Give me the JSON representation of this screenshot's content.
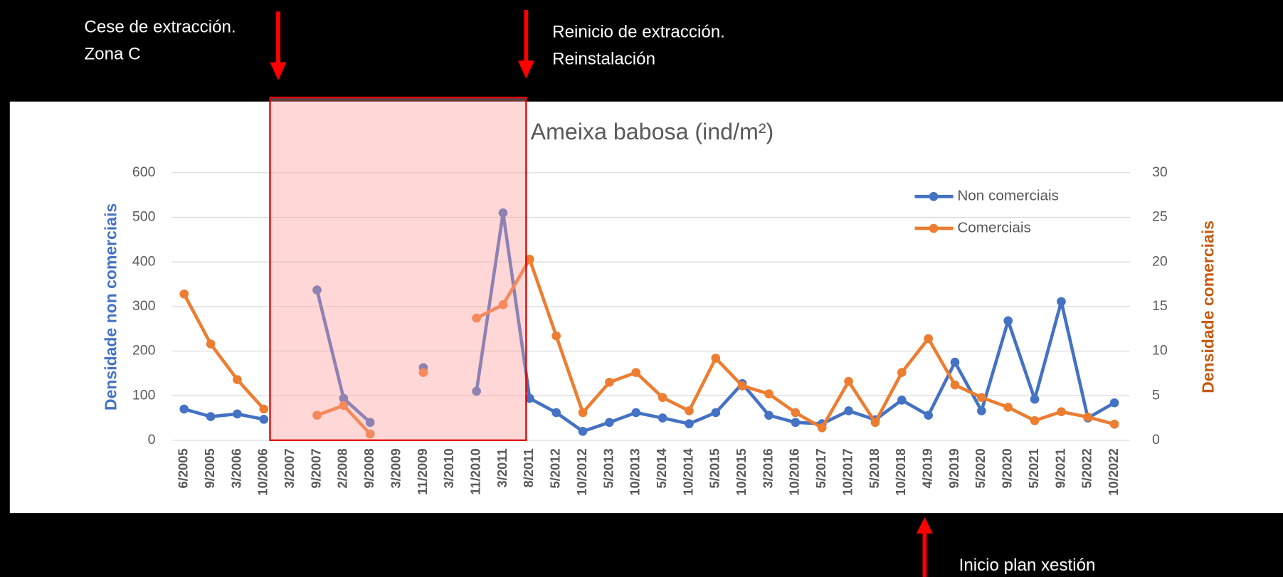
{
  "chart_data": {
    "type": "line",
    "title": "Ameixa babosa (ind/m²)",
    "ylabel": "Densidade non comerciais",
    "y2label": "Densidade comerciais",
    "categories": [
      "6/2005",
      "9/2005",
      "3/2006",
      "10/2006",
      "3/2007",
      "9/2007",
      "2/2008",
      "9/2008",
      "3/2009",
      "11/2009",
      "3/2010",
      "11/2010",
      "3/2011",
      "8/2011",
      "5/2012",
      "10/2012",
      "5/2013",
      "10/2013",
      "5/2014",
      "10/2014",
      "5/2015",
      "10/2015",
      "3/2016",
      "10/2016",
      "5/2017",
      "10/2017",
      "5/2018",
      "10/2018",
      "4/2019",
      "9/2019",
      "5/2020",
      "9/2020",
      "5/2021",
      "9/2021",
      "5/2022",
      "10/2022"
    ],
    "series": [
      {
        "name": "Non comerciais",
        "color": "#4472c4",
        "values": [
          70,
          53,
          59,
          47,
          null,
          337,
          94,
          40,
          null,
          163,
          null,
          110,
          510,
          94,
          62,
          20,
          40,
          62,
          50,
          37,
          62,
          127,
          56,
          40,
          37,
          66,
          46,
          90,
          56,
          175,
          66,
          268,
          92,
          311,
          50,
          84
        ]
      },
      {
        "name": "Comerciais",
        "color": "#ed7d31",
        "axis": "y2",
        "values": [
          16.4,
          10.8,
          6.8,
          3.5,
          null,
          2.8,
          3.9,
          0.7,
          null,
          7.6,
          null,
          13.7,
          15.2,
          20.3,
          11.7,
          3.1,
          6.5,
          7.6,
          4.8,
          3.3,
          9.2,
          6.1,
          5.2,
          3.1,
          1.4,
          6.6,
          2.0,
          7.6,
          11.4,
          6.2,
          4.8,
          3.7,
          2.2,
          3.2,
          2.6,
          1.8
        ]
      }
    ],
    "ylim": [
      0,
      600
    ],
    "yticks": [
      0,
      100,
      200,
      300,
      400,
      500,
      600
    ],
    "y2lim": [
      0,
      30
    ],
    "y2ticks": [
      0,
      5,
      10,
      15,
      20,
      25,
      30
    ],
    "grid": true,
    "legend": "upper right",
    "annotations": [
      {
        "lines": [
          "Cese de extracción.",
          "Zona C"
        ]
      },
      {
        "lines": [
          "Reinicio de extracción.",
          "Reinstalación"
        ]
      },
      {
        "lines": [
          "Inicio plan xestión"
        ]
      }
    ]
  }
}
